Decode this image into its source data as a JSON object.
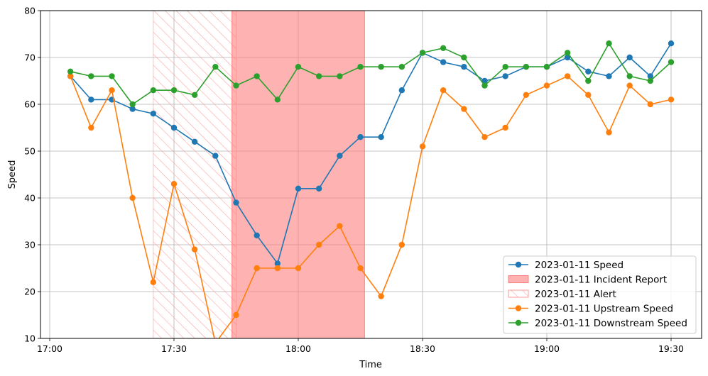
{
  "chart_data": {
    "type": "line",
    "xlabel": "Time",
    "ylabel": "Speed",
    "ylim": [
      10,
      80
    ],
    "xlim": [
      "16:58",
      "20:00"
    ],
    "x_ticks": [
      "17:00",
      "17:30",
      "18:00",
      "18:30",
      "19:00",
      "19:30"
    ],
    "y_ticks": [
      10,
      20,
      30,
      40,
      50,
      60,
      70,
      80
    ],
    "grid": true,
    "legend_position": "lower-right",
    "times": [
      "17:05",
      "17:10",
      "17:15",
      "17:20",
      "17:25",
      "17:30",
      "17:35",
      "17:40",
      "17:45",
      "17:50",
      "17:55",
      "18:00",
      "18:05",
      "18:10",
      "18:15",
      "18:20",
      "18:25",
      "18:30",
      "18:35",
      "18:40",
      "18:45",
      "18:50",
      "18:55",
      "19:00",
      "19:05",
      "19:10",
      "19:15",
      "19:20",
      "19:25",
      "19:30"
    ],
    "series": [
      {
        "name": "2023-01-11 Speed",
        "color": "#1f77b4",
        "values": [
          66,
          61,
          61,
          59,
          58,
          55,
          52,
          49,
          39,
          32,
          26,
          42,
          42,
          49,
          53,
          53,
          63,
          71,
          69,
          68,
          65,
          66,
          68,
          68,
          70,
          67,
          66,
          70,
          66,
          73
        ]
      },
      {
        "name": "2023-01-11 Upstream Speed",
        "color": "#ff7f0e",
        "values": [
          66,
          55,
          63,
          40,
          22,
          43,
          29,
          9,
          15,
          25,
          25,
          25,
          30,
          34,
          25,
          19,
          30,
          51,
          63,
          59,
          53,
          55,
          62,
          64,
          66,
          62,
          54,
          64,
          60,
          61
        ]
      },
      {
        "name": "2023-01-11 Downstream Speed",
        "color": "#2ca02c",
        "values": [
          67,
          66,
          66,
          60,
          63,
          63,
          62,
          68,
          64,
          66,
          61,
          68,
          66,
          66,
          68,
          68,
          68,
          71,
          72,
          70,
          64,
          68,
          68,
          68,
          71,
          65,
          73,
          66,
          65,
          69
        ]
      }
    ],
    "spans": [
      {
        "name": "2023-01-11 Alert",
        "start": "17:25",
        "end": "17:45",
        "style": "hatch",
        "color": "#ff9999"
      },
      {
        "name": "2023-01-11 Incident Report",
        "start": "17:44",
        "end": "18:16",
        "style": "fill",
        "color": "#ff7f7f"
      }
    ],
    "legend": [
      {
        "label": "2023-01-11 Speed",
        "kind": "line",
        "color": "#1f77b4"
      },
      {
        "label": "2023-01-11 Incident Report",
        "kind": "fill",
        "color": "#ff7f7f"
      },
      {
        "label": "2023-01-11 Alert",
        "kind": "hatch",
        "color": "#ff9999"
      },
      {
        "label": "2023-01-11 Upstream Speed",
        "kind": "line",
        "color": "#ff7f0e"
      },
      {
        "label": "2023-01-11 Downstream Speed",
        "kind": "line",
        "color": "#2ca02c"
      }
    ]
  }
}
